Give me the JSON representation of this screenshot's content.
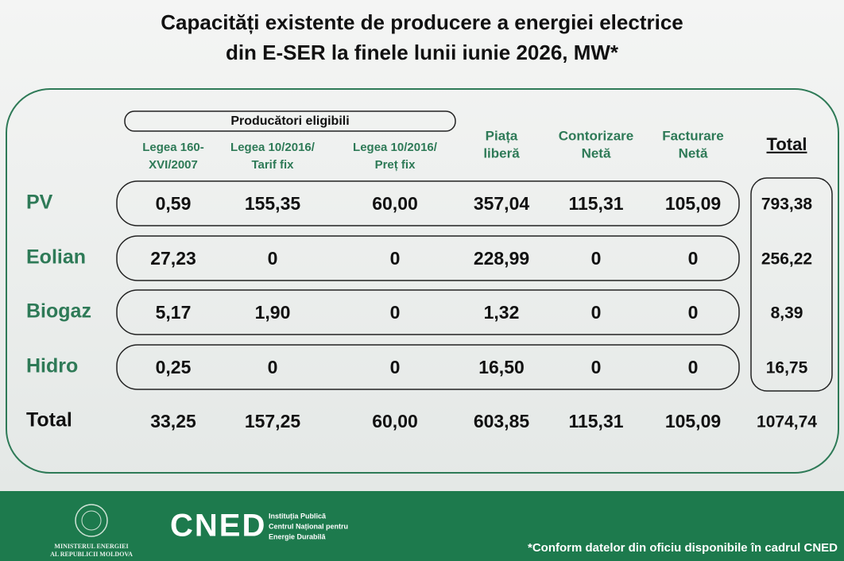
{
  "header": {
    "title": [
      "Capacități existente de producere a energiei electrice",
      "din E-SER la finele lunii iunie 2026, MW*"
    ]
  },
  "table": {
    "group_header": "Producători eligibili",
    "columns": [
      [
        "Legea 160-",
        "XVI/2007"
      ],
      [
        "Legea 10/2016/",
        "Tarif fix"
      ],
      [
        "Legea 10/2016/",
        "Preț fix"
      ],
      [
        "Piața",
        "liberă"
      ],
      [
        "Contorizare",
        "Netă"
      ],
      [
        "Facturare",
        "Netă"
      ],
      [
        "Total"
      ]
    ],
    "rows": [
      {
        "label": "PV",
        "cells": [
          "0,59",
          "155,35",
          "60,00",
          "357,04",
          "115,31",
          "105,09",
          "793,38"
        ]
      },
      {
        "label": "Eolian",
        "cells": [
          "27,23",
          "0",
          "0",
          "228,99",
          "0",
          "0",
          "256,22"
        ]
      },
      {
        "label": "Biogaz",
        "cells": [
          "5,17",
          "1,90",
          "0",
          "1,32",
          "0",
          "0",
          "8,39"
        ]
      },
      {
        "label": "Hidro",
        "cells": [
          "0,25",
          "0",
          "0",
          "16,50",
          "0",
          "0",
          "16,75"
        ]
      }
    ],
    "total": {
      "label": "Total",
      "cells": [
        "33,25",
        "157,25",
        "60,00",
        "603,85",
        "115,31",
        "105,09",
        "1074,74"
      ]
    }
  },
  "footer": {
    "ministry": [
      "MINISTERUL ENERGIEI",
      "AL REPUBLICII MOLDOVA"
    ],
    "logo": "CNED",
    "institution": [
      "Instituția Publică",
      "Centrul Național pentru",
      "Energie Durabilă"
    ],
    "note": "*Conform datelor din oficiu disponibile în cadrul CNED"
  }
}
